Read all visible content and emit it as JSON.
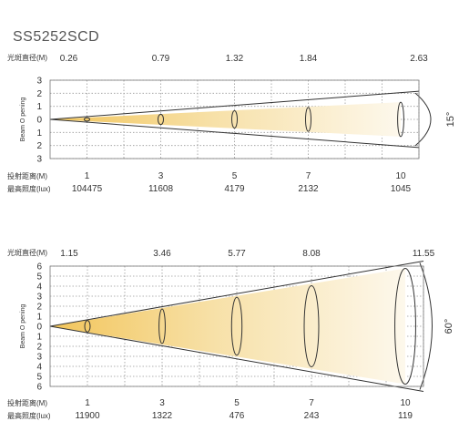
{
  "model": "SS5252SCD",
  "labels": {
    "spot_diameter": "光斑直径(M)",
    "throw_distance": "投射距离(M)",
    "max_illuminance": "最高照度(lux)",
    "beam_opening": "Beam O pening"
  },
  "diagrams": [
    {
      "beam_angle": "15°",
      "y_ticks": [
        "3",
        "2",
        "1",
        "0",
        "1",
        "2",
        "3"
      ],
      "diameters": [
        "0.26",
        "0.79",
        "1.32",
        "1.84",
        "2.63"
      ],
      "distances": [
        "1",
        "3",
        "5",
        "7",
        "10"
      ],
      "illuminance": [
        "104475",
        "11608",
        "4179",
        "2132",
        "1045"
      ],
      "diameter_values": [
        0.26,
        0.79,
        1.32,
        1.84,
        2.63
      ],
      "distance_values": [
        1,
        3,
        5,
        7,
        10
      ],
      "y_range": [
        -3,
        3
      ]
    },
    {
      "beam_angle": "60°",
      "y_ticks": [
        "6",
        "5",
        "4",
        "3",
        "2",
        "1",
        "0",
        "1",
        "2",
        "3",
        "4",
        "5",
        "6"
      ],
      "diameters": [
        "1.15",
        "3.46",
        "5.77",
        "8.08",
        "11.55"
      ],
      "distances": [
        "1",
        "3",
        "5",
        "7",
        "10"
      ],
      "illuminance": [
        "11900",
        "1322",
        "476",
        "243",
        "119"
      ],
      "diameter_values": [
        1.15,
        3.46,
        5.77,
        8.08,
        11.55
      ],
      "distance_values": [
        1,
        3,
        5,
        7,
        10
      ],
      "y_range": [
        -6,
        6
      ]
    }
  ]
}
